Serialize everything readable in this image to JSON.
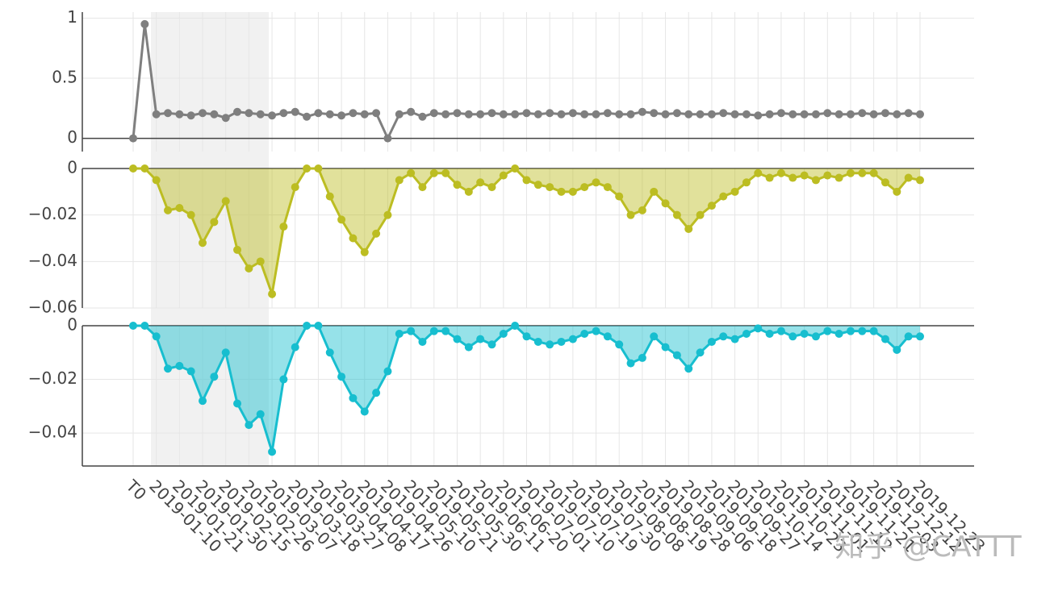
{
  "chart_data": {
    "type": "line",
    "categories": [
      "T0",
      null,
      "2019-01-10",
      null,
      "2019-01-21",
      null,
      "2019-01-30",
      null,
      "2019-02-15",
      null,
      "2019-02-26",
      null,
      "2019-03-07",
      null,
      "2019-03-18",
      null,
      "2019-03-27",
      null,
      "2019-04-08",
      null,
      "2019-04-17",
      null,
      "2019-04-26",
      null,
      "2019-05-10",
      null,
      "2019-05-21",
      null,
      "2019-05-30",
      null,
      "2019-06-11",
      null,
      "2019-06-20",
      null,
      "2019-07-01",
      null,
      "2019-07-10",
      null,
      "2019-07-19",
      null,
      "2019-07-30",
      null,
      "2019-08-08",
      null,
      "2019-08-19",
      null,
      "2019-08-28",
      null,
      "2019-09-06",
      null,
      "2019-09-18",
      null,
      "2019-09-27",
      null,
      "2019-10-14",
      null,
      "2019-10-23",
      null,
      "2019-11-01",
      null,
      "2019-11-12",
      null,
      "2019-11-21",
      null,
      "2019-12-03",
      null,
      "2019-12-12",
      null,
      "2019-12-23"
    ],
    "series": [
      {
        "color": "#7f7f7f",
        "fill": false,
        "ylim": [
          -0.11,
          1.05
        ],
        "yticks": [
          0,
          0.5,
          1
        ],
        "values": [
          0,
          0.95,
          0.2,
          0.21,
          0.2,
          0.19,
          0.21,
          0.2,
          0.17,
          0.22,
          0.21,
          0.2,
          0.19,
          0.21,
          0.22,
          0.18,
          0.21,
          0.2,
          0.19,
          0.21,
          0.2,
          0.21,
          0,
          0.2,
          0.22,
          0.18,
          0.21,
          0.2,
          0.21,
          0.2,
          0.2,
          0.21,
          0.2,
          0.2,
          0.21,
          0.2,
          0.21,
          0.2,
          0.21,
          0.2,
          0.2,
          0.21,
          0.2,
          0.2,
          0.22,
          0.21,
          0.2,
          0.21,
          0.2,
          0.2,
          0.2,
          0.21,
          0.2,
          0.2,
          0.19,
          0.2,
          0.21,
          0.2,
          0.2,
          0.2,
          0.21,
          0.2,
          0.2,
          0.21,
          0.2,
          0.21,
          0.2,
          0.21,
          0.2
        ]
      },
      {
        "color": "#bcbd22",
        "fill": true,
        "ylim": [
          -0.06,
          0
        ],
        "yticks": [
          {
            "value": 0,
            "label": "0"
          },
          {
            "value": -0.02,
            "label": "−0.02"
          },
          {
            "value": -0.04,
            "label": "−0.04"
          },
          {
            "value": -0.06,
            "label": "−0.06"
          }
        ],
        "values": [
          0,
          0,
          -0.005,
          -0.018,
          -0.017,
          -0.02,
          -0.032,
          -0.023,
          -0.014,
          -0.035,
          -0.043,
          -0.04,
          -0.054,
          -0.025,
          -0.008,
          0,
          0,
          -0.012,
          -0.022,
          -0.03,
          -0.036,
          -0.028,
          -0.02,
          -0.005,
          -0.002,
          -0.008,
          -0.002,
          -0.002,
          -0.007,
          -0.01,
          -0.006,
          -0.008,
          -0.003,
          0,
          -0.005,
          -0.007,
          -0.008,
          -0.01,
          -0.01,
          -0.008,
          -0.006,
          -0.008,
          -0.012,
          -0.02,
          -0.018,
          -0.01,
          -0.015,
          -0.02,
          -0.026,
          -0.02,
          -0.016,
          -0.012,
          -0.01,
          -0.006,
          -0.002,
          -0.004,
          -0.002,
          -0.004,
          -0.003,
          -0.005,
          -0.003,
          -0.004,
          -0.002,
          -0.002,
          -0.002,
          -0.006,
          -0.01,
          -0.004,
          -0.005
        ]
      },
      {
        "color": "#17becf",
        "fill": true,
        "ylim": [
          -0.0523,
          0
        ],
        "yticks": [
          {
            "value": 0,
            "label": "0"
          },
          {
            "value": -0.02,
            "label": "−0.02"
          },
          {
            "value": -0.04,
            "label": "−0.04"
          }
        ],
        "values": [
          0,
          0,
          -0.004,
          -0.016,
          -0.015,
          -0.017,
          -0.028,
          -0.019,
          -0.01,
          -0.029,
          -0.037,
          -0.033,
          -0.047,
          -0.02,
          -0.008,
          0,
          0,
          -0.01,
          -0.019,
          -0.027,
          -0.032,
          -0.025,
          -0.017,
          -0.003,
          -0.002,
          -0.006,
          -0.002,
          -0.002,
          -0.005,
          -0.008,
          -0.005,
          -0.007,
          -0.003,
          0,
          -0.004,
          -0.006,
          -0.007,
          -0.006,
          -0.005,
          -0.003,
          -0.002,
          -0.004,
          -0.007,
          -0.014,
          -0.012,
          -0.004,
          -0.008,
          -0.011,
          -0.016,
          -0.01,
          -0.006,
          -0.004,
          -0.005,
          -0.003,
          -0.001,
          -0.003,
          -0.002,
          -0.004,
          -0.003,
          -0.004,
          -0.002,
          -0.003,
          -0.002,
          -0.002,
          -0.002,
          -0.005,
          -0.009,
          -0.004,
          -0.004
        ]
      }
    ],
    "watermark": "知乎 @CATTT"
  }
}
